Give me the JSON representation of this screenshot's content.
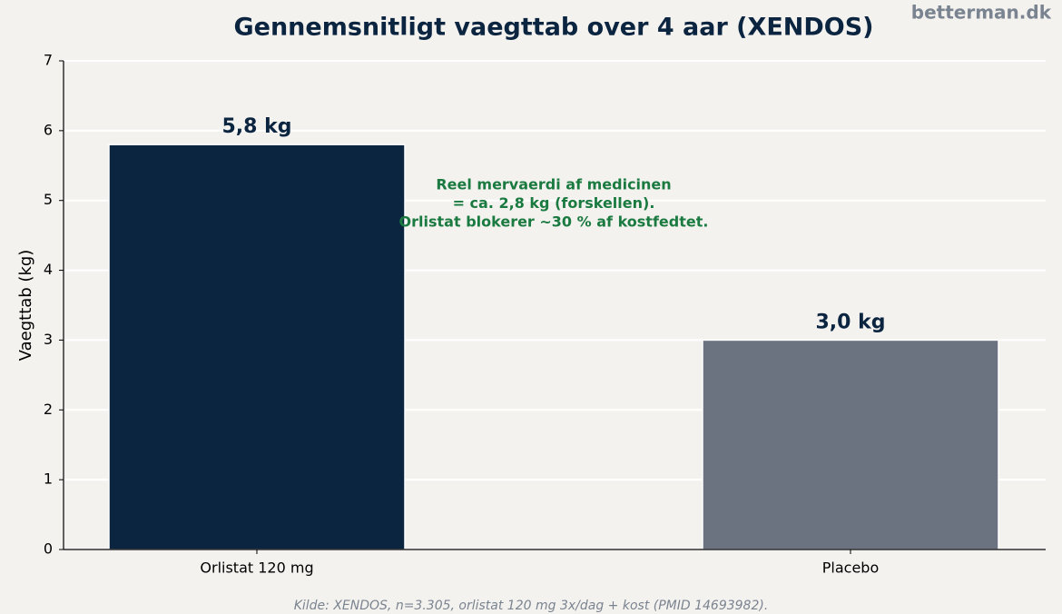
{
  "chart_data": {
    "type": "bar",
    "title": "Gennemsnitligt vaegttab over 4 aar (XENDOS)",
    "watermark": "betterman.dk",
    "ylabel": "Vaegttab (kg)",
    "categories": [
      "Orlistat 120 mg",
      "Placebo"
    ],
    "values": [
      5.8,
      3.0
    ],
    "value_labels": [
      "5,8 kg",
      "3,0 kg"
    ],
    "colors": [
      "#0b2540",
      "#6b7280"
    ],
    "ylim": [
      0,
      7
    ],
    "yticks": [
      0,
      1,
      2,
      3,
      4,
      5,
      6,
      7
    ],
    "grid": true,
    "annotation": [
      "Reel mervaerdi af medicinen",
      "= ca. 2,8 kg (forskellen).",
      "Orlistat blokerer ~30 % af kostfedtet."
    ],
    "source": "Kilde: XENDOS, n=3.305, orlistat 120 mg 3x/dag + kost (PMID 14693982)."
  }
}
